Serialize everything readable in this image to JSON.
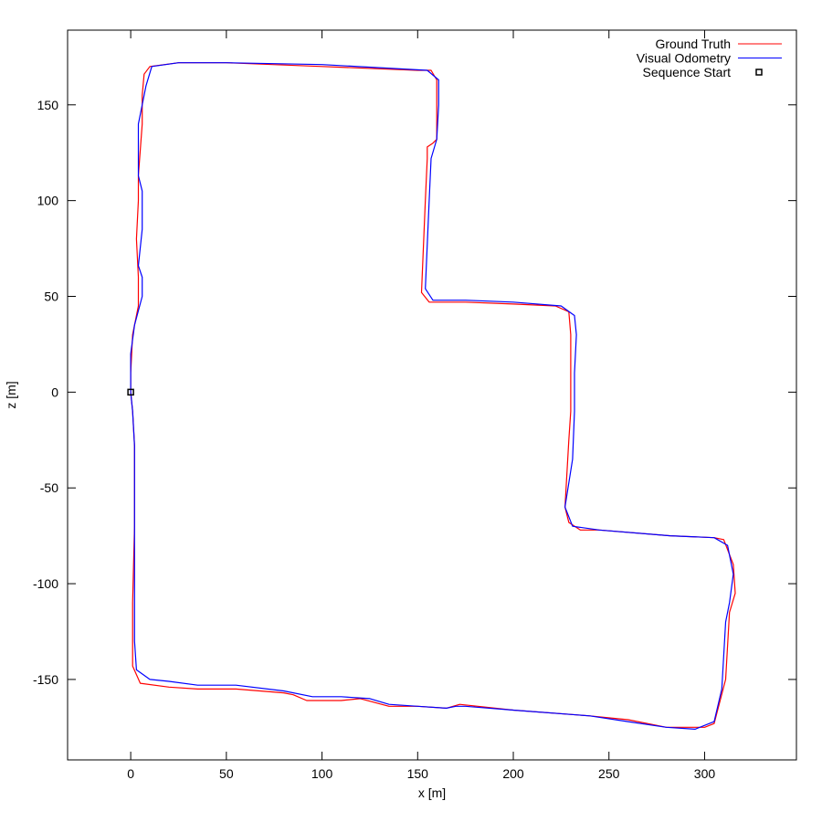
{
  "chart_data": {
    "type": "line",
    "title": "",
    "xlabel": "x [m]",
    "ylabel": "z [m]",
    "xlim": [
      -33,
      348
    ],
    "ylim": [
      -192,
      189
    ],
    "x_ticks": [
      0,
      50,
      100,
      150,
      200,
      250,
      300
    ],
    "y_ticks": [
      -150,
      -100,
      -50,
      0,
      50,
      100,
      150
    ],
    "grid": false,
    "legend_position": "top-right",
    "series": [
      {
        "name": "Ground Truth",
        "color": "#ff0000",
        "points": [
          [
            0,
            0
          ],
          [
            1,
            -10
          ],
          [
            2,
            -28
          ],
          [
            2,
            -70
          ],
          [
            1,
            -110
          ],
          [
            1,
            -143
          ],
          [
            5,
            -152
          ],
          [
            20,
            -154
          ],
          [
            35,
            -155
          ],
          [
            55,
            -155
          ],
          [
            80,
            -157
          ],
          [
            85,
            -158
          ],
          [
            92,
            -161
          ],
          [
            110,
            -161
          ],
          [
            120,
            -160
          ],
          [
            135,
            -164
          ],
          [
            150,
            -164
          ],
          [
            165,
            -165
          ],
          [
            172,
            -163
          ],
          [
            200,
            -166
          ],
          [
            240,
            -169
          ],
          [
            260,
            -171
          ],
          [
            280,
            -175
          ],
          [
            300,
            -175
          ],
          [
            305,
            -173
          ],
          [
            311,
            -150
          ],
          [
            313,
            -115
          ],
          [
            316,
            -105
          ],
          [
            315,
            -90
          ],
          [
            310,
            -77
          ],
          [
            305,
            -76
          ],
          [
            282,
            -75
          ],
          [
            245,
            -72
          ],
          [
            235,
            -72
          ],
          [
            229,
            -68
          ],
          [
            227,
            -60
          ],
          [
            229,
            -25
          ],
          [
            230,
            -10
          ],
          [
            230,
            30
          ],
          [
            229,
            42
          ],
          [
            222,
            45
          ],
          [
            200,
            46
          ],
          [
            175,
            47
          ],
          [
            156,
            47
          ],
          [
            152,
            52
          ],
          [
            154,
            100
          ],
          [
            155,
            122
          ],
          [
            155,
            128
          ],
          [
            158,
            130
          ],
          [
            160,
            132
          ],
          [
            160,
            150
          ],
          [
            160,
            163
          ],
          [
            157,
            168
          ],
          [
            150,
            168
          ],
          [
            100,
            170
          ],
          [
            50,
            172
          ],
          [
            25,
            172
          ],
          [
            10,
            170
          ],
          [
            7,
            166
          ],
          [
            6,
            155
          ],
          [
            6,
            140
          ],
          [
            4,
            113
          ],
          [
            4,
            100
          ],
          [
            3,
            80
          ],
          [
            4,
            60
          ],
          [
            4,
            45
          ],
          [
            1,
            30
          ],
          [
            0,
            10
          ],
          [
            0,
            0
          ]
        ]
      },
      {
        "name": "Visual Odometry",
        "color": "#0000ff",
        "points": [
          [
            0,
            0
          ],
          [
            0,
            20
          ],
          [
            2,
            35
          ],
          [
            6,
            50
          ],
          [
            6,
            60
          ],
          [
            4,
            66
          ],
          [
            6,
            85
          ],
          [
            6,
            100
          ],
          [
            6,
            105
          ],
          [
            4,
            113
          ],
          [
            4,
            140
          ],
          [
            6,
            150
          ],
          [
            8,
            160
          ],
          [
            11,
            170
          ],
          [
            25,
            172
          ],
          [
            50,
            172
          ],
          [
            100,
            171
          ],
          [
            155,
            168
          ],
          [
            161,
            163
          ],
          [
            161,
            150
          ],
          [
            160,
            132
          ],
          [
            157,
            122
          ],
          [
            156,
            100
          ],
          [
            154,
            54
          ],
          [
            158,
            48
          ],
          [
            175,
            48
          ],
          [
            200,
            47
          ],
          [
            225,
            45
          ],
          [
            232,
            40
          ],
          [
            233,
            30
          ],
          [
            232,
            10
          ],
          [
            232,
            -10
          ],
          [
            231,
            -35
          ],
          [
            227,
            -60
          ],
          [
            231,
            -70
          ],
          [
            245,
            -72
          ],
          [
            282,
            -75
          ],
          [
            305,
            -76
          ],
          [
            312,
            -80
          ],
          [
            315,
            -95
          ],
          [
            313,
            -110
          ],
          [
            311,
            -120
          ],
          [
            309,
            -155
          ],
          [
            305,
            -172
          ],
          [
            295,
            -176
          ],
          [
            280,
            -175
          ],
          [
            260,
            -172
          ],
          [
            240,
            -169
          ],
          [
            200,
            -166
          ],
          [
            175,
            -164
          ],
          [
            170,
            -164
          ],
          [
            165,
            -165
          ],
          [
            150,
            -164
          ],
          [
            135,
            -163
          ],
          [
            125,
            -160
          ],
          [
            110,
            -159
          ],
          [
            95,
            -159
          ],
          [
            80,
            -156
          ],
          [
            55,
            -153
          ],
          [
            35,
            -153
          ],
          [
            20,
            -151
          ],
          [
            10,
            -150
          ],
          [
            3,
            -145
          ],
          [
            2,
            -130
          ],
          [
            2,
            -80
          ],
          [
            2,
            -50
          ],
          [
            2,
            -28
          ],
          [
            1,
            -10
          ],
          [
            0,
            0
          ]
        ]
      },
      {
        "name": "Sequence Start",
        "color": "#000000",
        "marker": "square",
        "points": [
          [
            0,
            0
          ]
        ]
      }
    ]
  }
}
